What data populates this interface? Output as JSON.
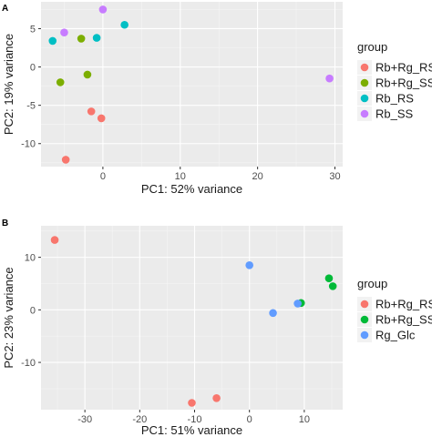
{
  "chart_data": [
    {
      "type": "scatter",
      "panel_label": "A",
      "xlabel": "PC1: 52% variance",
      "ylabel": "PC2: 19% variance",
      "xlim": [
        -8,
        31
      ],
      "ylim": [
        -13,
        8.5
      ],
      "x_ticks": [
        0,
        10,
        20,
        30
      ],
      "y_ticks": [
        -10,
        -5,
        0,
        5
      ],
      "grid": true,
      "legend": {
        "title": "group",
        "position": "right"
      },
      "series": [
        {
          "name": "Rb+Rg_RS",
          "color": "#F8766D",
          "points": [
            [
              -1.5,
              -5.8
            ],
            [
              -0.2,
              -6.7
            ],
            [
              -4.8,
              -12.1
            ]
          ]
        },
        {
          "name": "Rb+Rg_SS",
          "color": "#7CAE00",
          "points": [
            [
              -2.8,
              3.7
            ],
            [
              -2.0,
              -1.0
            ],
            [
              -5.5,
              -2.0
            ]
          ]
        },
        {
          "name": "Rb_RS",
          "color": "#00BFC4",
          "points": [
            [
              -6.5,
              3.4
            ],
            [
              -0.8,
              3.8
            ],
            [
              2.8,
              5.5
            ]
          ]
        },
        {
          "name": "Rb_SS",
          "color": "#C77CFF",
          "points": [
            [
              -5.0,
              4.5
            ],
            [
              0.0,
              7.5
            ],
            [
              29.3,
              -1.5
            ]
          ]
        }
      ]
    },
    {
      "type": "scatter",
      "panel_label": "B",
      "xlabel": "PC1: 51% variance",
      "ylabel": "PC2: 23% variance",
      "xlim": [
        -38,
        17
      ],
      "ylim": [
        -19,
        16
      ],
      "x_ticks": [
        -30,
        -20,
        -10,
        0,
        10
      ],
      "y_ticks": [
        -10,
        0,
        10
      ],
      "grid": true,
      "legend": {
        "title": "group",
        "position": "right"
      },
      "series": [
        {
          "name": "Rb+Rg_RS",
          "color": "#F8766D",
          "points": [
            [
              -35.5,
              13.3
            ],
            [
              -10.5,
              -17.7
            ],
            [
              -6.0,
              -16.8
            ]
          ]
        },
        {
          "name": "Rb+Rg_SS",
          "color": "#00BA38",
          "points": [
            [
              14.5,
              6.0
            ],
            [
              15.2,
              4.5
            ],
            [
              9.4,
              1.3
            ]
          ]
        },
        {
          "name": "Rg_Glc",
          "color": "#619CFF",
          "points": [
            [
              0.0,
              8.5
            ],
            [
              4.3,
              -0.6
            ],
            [
              8.8,
              1.2
            ]
          ]
        }
      ]
    }
  ]
}
